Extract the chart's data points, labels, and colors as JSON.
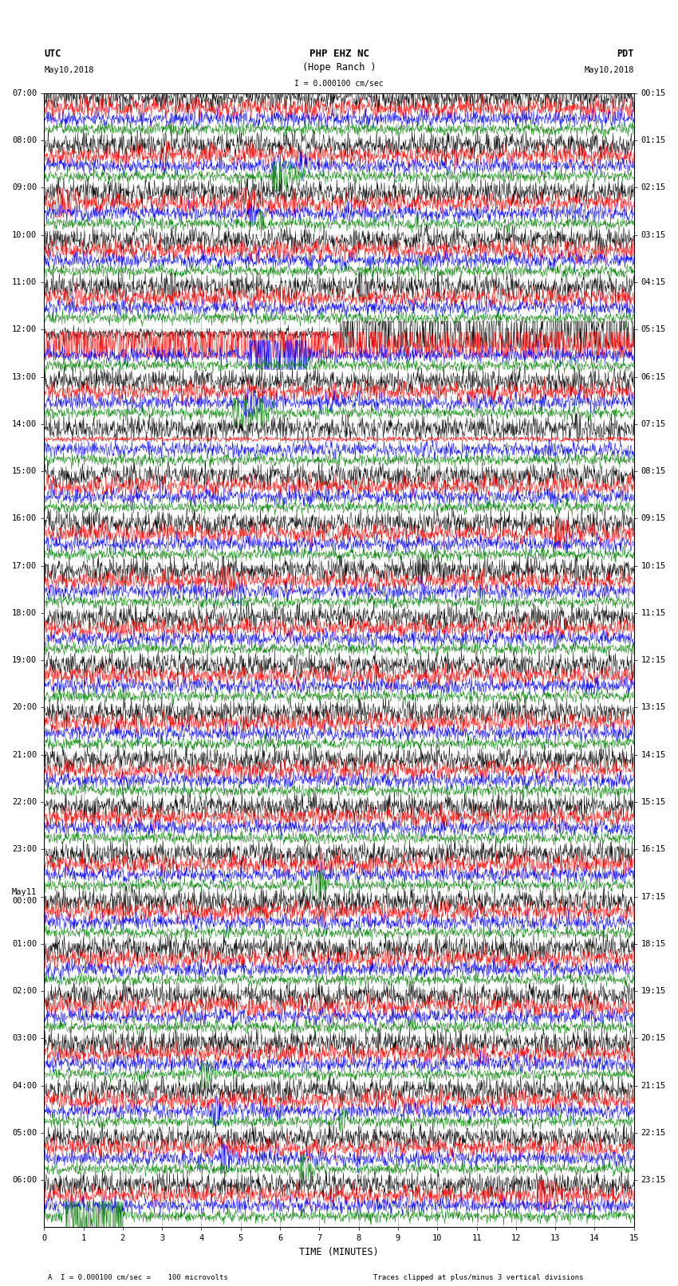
{
  "title_line1": "PHP EHZ NC",
  "title_line2": "(Hope Ranch )",
  "scale_bar": "I = 0.000100 cm/sec",
  "left_label_line1": "UTC",
  "left_label_line2": "May10,2018",
  "right_label_line1": "PDT",
  "right_label_line2": "May10,2018",
  "xlabel": "TIME (MINUTES)",
  "footer_left": "A  I = 0.000100 cm/sec =    100 microvolts",
  "footer_right": "Traces clipped at plus/minus 3 vertical divisions",
  "utc_labels": [
    "07:00",
    "08:00",
    "09:00",
    "10:00",
    "11:00",
    "12:00",
    "13:00",
    "14:00",
    "15:00",
    "16:00",
    "17:00",
    "18:00",
    "19:00",
    "20:00",
    "21:00",
    "22:00",
    "23:00",
    "May11\n00:00",
    "01:00",
    "02:00",
    "03:00",
    "04:00",
    "05:00",
    "06:00"
  ],
  "pdt_labels": [
    "00:15",
    "01:15",
    "02:15",
    "03:15",
    "04:15",
    "05:15",
    "06:15",
    "07:15",
    "08:15",
    "09:15",
    "10:15",
    "11:15",
    "12:15",
    "13:15",
    "14:15",
    "15:15",
    "16:15",
    "17:15",
    "18:15",
    "19:15",
    "20:15",
    "21:15",
    "22:15",
    "23:15"
  ],
  "n_hours": 24,
  "n_minutes": 15,
  "traces_per_hour": 4,
  "trace_colors": [
    "black",
    "red",
    "blue",
    "green"
  ],
  "noise_levels": [
    0.12,
    0.1,
    0.08,
    0.06
  ],
  "background_color": "white",
  "tick_fontsize": 7.5,
  "title_fontsize": 9,
  "label_fontsize": 8.5
}
